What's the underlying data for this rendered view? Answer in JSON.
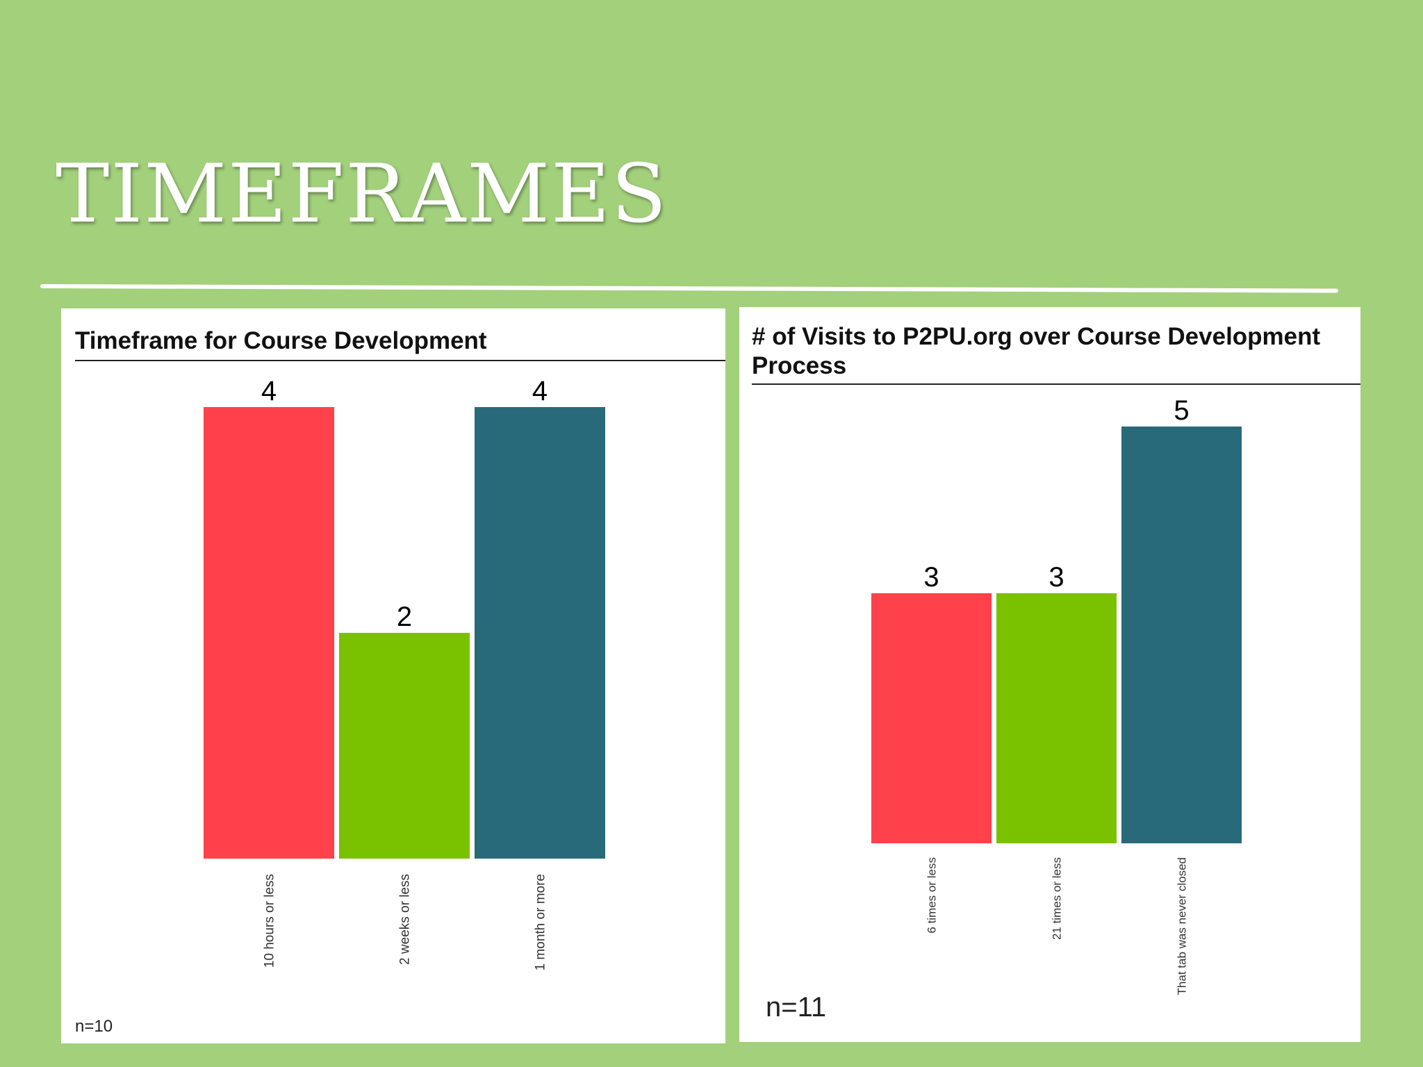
{
  "slide": {
    "title": "TIMEFRAMES"
  },
  "colors": {
    "background": "#a2d07b",
    "red": "#fe414b",
    "green": "#7ac200",
    "teal": "#286a7a"
  },
  "chart_data": [
    {
      "type": "bar",
      "title": "Timeframe for Course Development",
      "categories": [
        "10 hours or less",
        "2 weeks or less",
        "1 month or more"
      ],
      "values": [
        4,
        2,
        4
      ],
      "data_labels": [
        "4",
        "2",
        "4"
      ],
      "colors": [
        "#fe414b",
        "#7ac200",
        "#286a7a"
      ],
      "ylim": [
        0,
        4
      ],
      "xlabel": "",
      "ylabel": "",
      "grid": false,
      "legend": "none",
      "note": "n=10"
    },
    {
      "type": "bar",
      "title": "# of Visits to P2PU.org over Course Development Process",
      "categories": [
        "6 times or less",
        "21 times or less",
        "That tab was never closed"
      ],
      "values": [
        3,
        3,
        5
      ],
      "data_labels": [
        "3",
        "3",
        "5"
      ],
      "colors": [
        "#fe414b",
        "#7ac200",
        "#286a7a"
      ],
      "ylim": [
        0,
        5
      ],
      "xlabel": "",
      "ylabel": "",
      "grid": false,
      "legend": "none",
      "note": "n=11"
    }
  ]
}
